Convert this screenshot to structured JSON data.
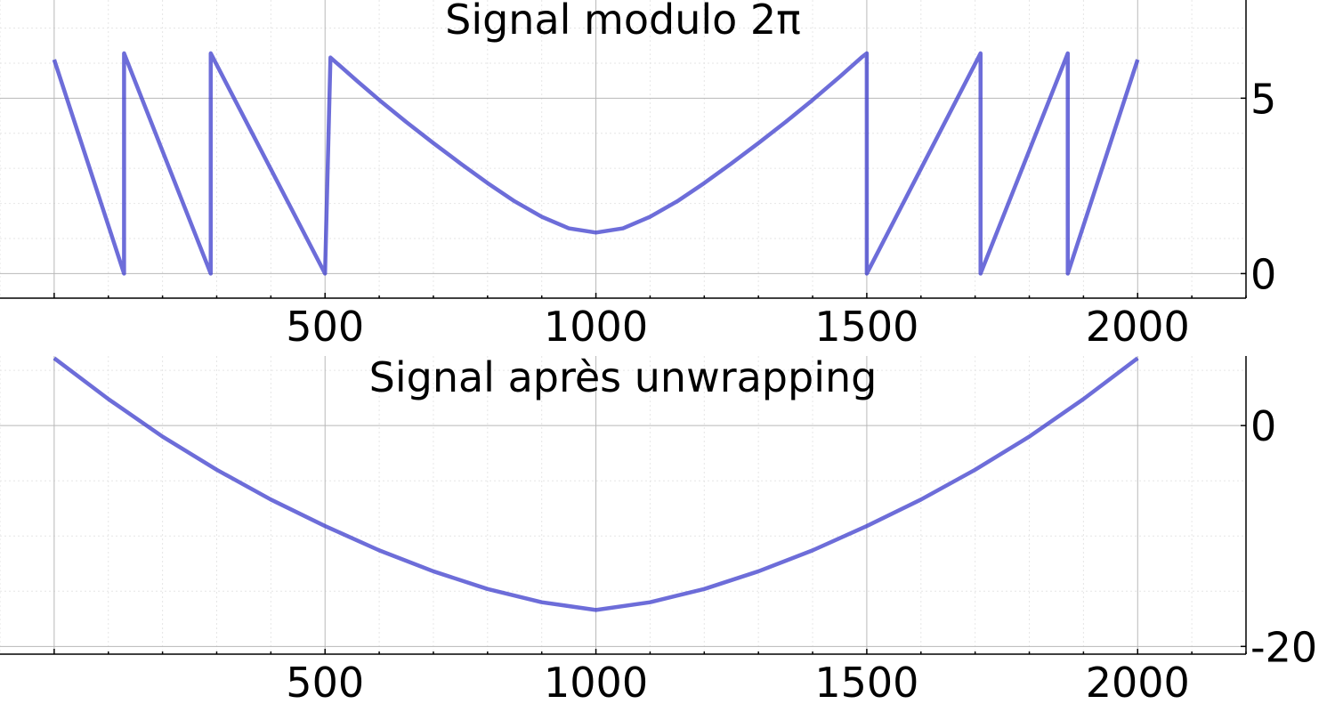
{
  "chart_data": [
    {
      "type": "line",
      "title": "Signal modulo 2π",
      "xlabel": "",
      "ylabel": "",
      "xlim": [
        -100,
        2200
      ],
      "ylim": [
        -0.7,
        7.8
      ],
      "xticks": [
        500,
        1000,
        1500,
        2000
      ],
      "xtick_labels": [
        "500",
        "1000",
        "1500",
        "2000"
      ],
      "yticks": [
        0,
        5
      ],
      "ytick_labels": [
        "0",
        "5"
      ],
      "grid": true,
      "color": "#3c3ccc",
      "series": [
        {
          "x": [
            0,
            129,
            129.01,
            289,
            289.01,
            500,
            510,
            560,
            600,
            650,
            700,
            750,
            800,
            850,
            900,
            950,
            1000,
            1050,
            1100,
            1150,
            1200,
            1250,
            1300,
            1350,
            1400,
            1450,
            1490,
            1500,
            1500.01,
            1710,
            1710.01,
            1871,
            1871.01,
            2000
          ],
          "values": [
            6.1,
            0.0,
            6.28,
            0.0,
            6.28,
            0.0,
            6.16,
            5.48,
            4.95,
            4.32,
            3.72,
            3.14,
            2.58,
            2.06,
            1.62,
            1.29,
            1.17,
            1.29,
            1.62,
            2.06,
            2.58,
            3.14,
            3.72,
            4.32,
            4.95,
            5.61,
            6.16,
            6.28,
            0.0,
            6.28,
            0.0,
            6.28,
            0.0,
            6.1
          ]
        }
      ]
    },
    {
      "type": "line",
      "title": "Signal après unwrapping",
      "xlabel": "",
      "ylabel": "",
      "xlim": [
        -100,
        2200
      ],
      "ylim": [
        -20.7,
        6.3
      ],
      "xticks": [
        500,
        1000,
        1500,
        2000
      ],
      "xtick_labels": [
        "500",
        "1000",
        "1500",
        "2000"
      ],
      "yticks": [
        -20,
        0
      ],
      "ytick_labels": [
        "-20",
        "0"
      ],
      "grid": true,
      "color": "#3c3ccc",
      "series": [
        {
          "x": [
            0,
            100,
            200,
            300,
            400,
            500,
            600,
            700,
            800,
            900,
            1000,
            1100,
            1200,
            1300,
            1400,
            1500,
            1600,
            1700,
            1800,
            1900,
            2000
          ],
          "values": [
            6.1,
            2.4,
            -1.0,
            -4.0,
            -6.7,
            -9.1,
            -11.3,
            -13.2,
            -14.8,
            -16.0,
            -16.7,
            -16.0,
            -14.8,
            -13.2,
            -11.3,
            -9.1,
            -6.7,
            -4.0,
            -1.0,
            2.4,
            6.1
          ]
        }
      ]
    }
  ]
}
